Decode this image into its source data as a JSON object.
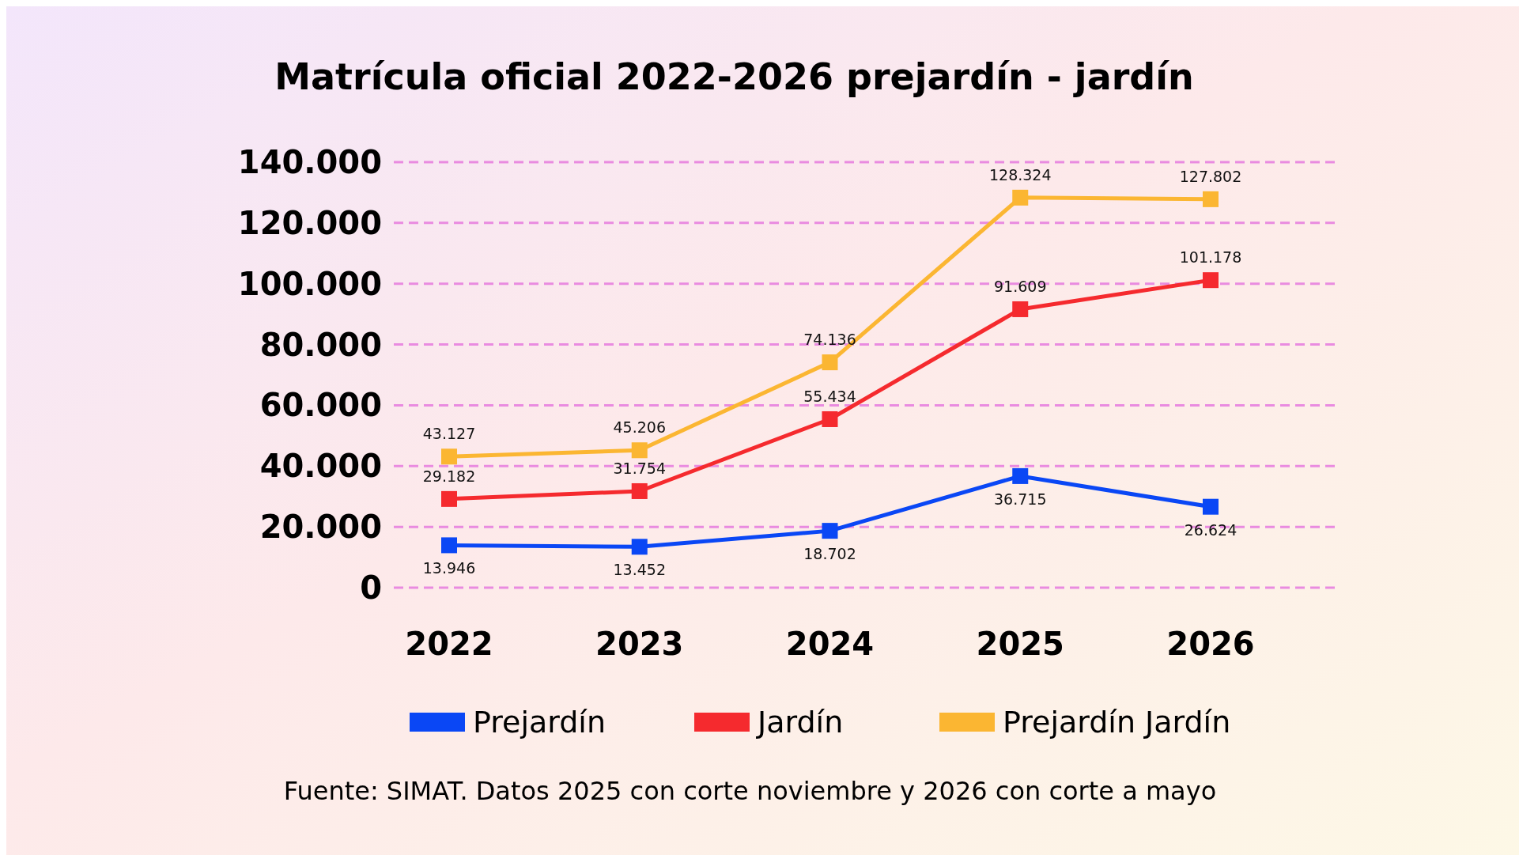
{
  "chart_data": {
    "type": "line",
    "title": "Matrícula oficial 2022-2026 prejardín - jardín",
    "categories": [
      "2022",
      "2023",
      "2024",
      "2025",
      "2026"
    ],
    "series": [
      {
        "name": "Prejardín",
        "color": "#0a47f5",
        "values": [
          13946,
          13452,
          18702,
          36715,
          26624
        ],
        "value_labels": [
          "13.946",
          "13.452",
          "18.702",
          "36.715",
          "26.624"
        ]
      },
      {
        "name": "Jardín",
        "color": "#f52a2e",
        "values": [
          29182,
          31754,
          55434,
          91609,
          101178
        ],
        "value_labels": [
          "29.182",
          "31.754",
          "55.434",
          "91.609",
          "101.178"
        ]
      },
      {
        "name": "Prejardín  Jardín",
        "color": "#fbb632",
        "values": [
          43127,
          45206,
          74136,
          128324,
          127802
        ],
        "value_labels": [
          "43.127",
          "45.206",
          "74.136",
          "128.324",
          "127.802"
        ]
      }
    ],
    "ylim": [
      0,
      140000
    ],
    "yticks": [
      0,
      {
        "value": 20000,
        "label": "20.000"
      },
      {
        "value": 40000,
        "label": "40.000"
      },
      {
        "value": 60000,
        "label": "60.000"
      },
      {
        "value": 80000,
        "label": "80.000"
      },
      {
        "value": 100000,
        "label": "100.000"
      },
      {
        "value": 120000,
        "label": "120.000"
      },
      {
        "value": 140000,
        "label": "140.000"
      }
    ],
    "grid": "y",
    "marker": "square",
    "line_style": "solid",
    "legend": "bottom",
    "annotations": [
      "Fuente: SIMAT. Datos 2025 con corte noviembre y 2026 con corte a mayo"
    ]
  }
}
